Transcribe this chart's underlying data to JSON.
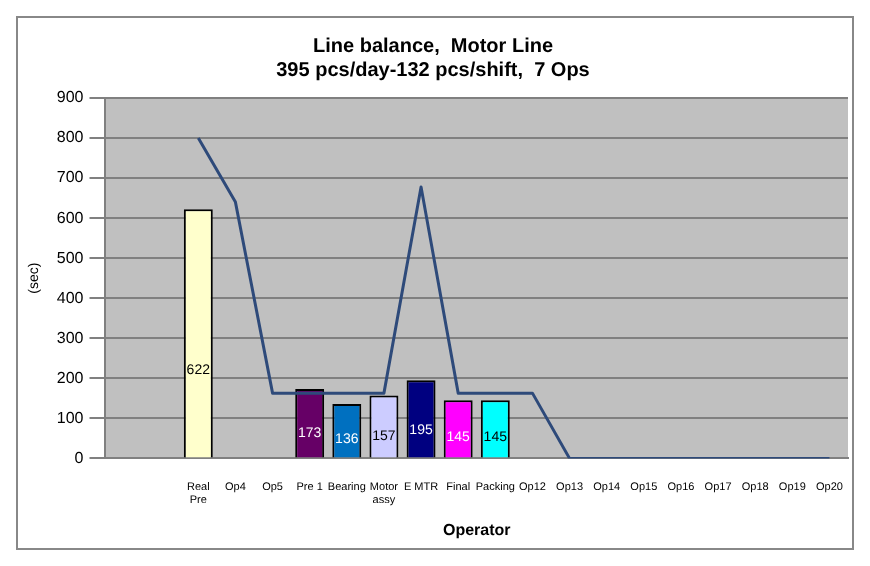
{
  "chart_data": {
    "type": "bar",
    "title": "Line balance,  Motor Line",
    "subtitle": "395 pcs/day-132 pcs/shift,  7 Ops",
    "xlabel": "Operator",
    "ylabel": "(sec)",
    "categories": [
      null,
      null,
      "Real Pre",
      "Op4",
      "Op5",
      "Pre 1",
      "Bearing",
      "Motor assy",
      "E MTR",
      "Final",
      "Packing",
      "Op12",
      "Op13",
      "Op14",
      "Op15",
      "Op16",
      "Op17",
      "Op18",
      "Op19",
      "Op20"
    ],
    "series": [
      {
        "values": [
          null,
          null,
          622,
          null,
          null,
          173,
          136,
          157,
          195,
          145,
          145,
          null,
          null,
          null,
          null,
          null,
          null,
          null,
          null,
          null
        ],
        "colors": [
          "#ffffcc",
          "#ffffcc",
          "#ffffcc",
          "#ffffcc",
          "#ffffcc",
          "#660066",
          "#0070c0",
          "#ccccff",
          "#000080",
          "#ff00ff",
          "#00ffff",
          "#ffffcc",
          "#ffffcc",
          "#ffffcc",
          "#ffffcc",
          "#ffffcc",
          "#ffffcc",
          "#ffffcc",
          "#ffffcc",
          "#ffffcc"
        ],
        "value_labels": [
          null,
          null,
          "622",
          null,
          null,
          "173",
          "136",
          "157",
          "195",
          "145",
          "145",
          null,
          null,
          null,
          null,
          null,
          null,
          null,
          null,
          null
        ]
      },
      {
        "type": "line",
        "color": "#2e4a7a",
        "values": [
          null,
          null,
          800,
          640,
          163,
          163,
          163,
          163,
          678,
          163,
          163,
          163,
          0,
          0,
          0,
          0,
          0,
          0,
          0,
          0
        ]
      }
    ],
    "ylim": [
      0,
      900
    ],
    "yticks": [
      0,
      100,
      200,
      300,
      400,
      500,
      600,
      700,
      800,
      900
    ],
    "grid": "y",
    "legend": false,
    "marker": "none",
    "line_style": "solid"
  }
}
